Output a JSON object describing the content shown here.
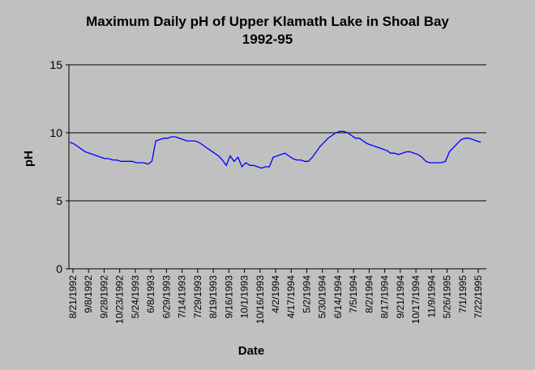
{
  "chart_data": {
    "type": "line",
    "title": "Maximum Daily pH of Upper Klamath Lake in Shoal Bay",
    "subtitle": "1992-95",
    "xlabel": "Date",
    "ylabel": "pH",
    "ylim": [
      0,
      15
    ],
    "yticks": [
      0,
      5,
      10,
      15
    ],
    "grid": "horizontal",
    "colors": {
      "line": "#0000ff",
      "background": "#c0c0c0",
      "plot": "#c0c0c0",
      "axis": "#000000"
    },
    "categories": [
      "8/21/1992",
      "9/8/1992",
      "9/28/1992",
      "10/23/1992",
      "5/24/1993",
      "6/8/1993",
      "6/29/1993",
      "7/14/1993",
      "7/29/1993",
      "8/19/1993",
      "9/16/1993",
      "10/1/1993",
      "10/16/1993",
      "4/2/1994",
      "4/17/1994",
      "5/2/1994",
      "5/30/1994",
      "6/14/1994",
      "7/5/1994",
      "8/2/1994",
      "8/17/1994",
      "9/21/1994",
      "10/17/1994",
      "11/9/1994",
      "5/26/1995",
      "7/1/1995",
      "7/22/1995"
    ],
    "x": [
      0,
      0.25,
      0.5,
      0.75,
      1,
      1.25,
      1.5,
      1.75,
      2,
      2.25,
      2.5,
      2.75,
      3,
      3.25,
      3.5,
      3.75,
      4,
      4.25,
      4.5,
      4.75,
      5,
      5.25,
      5.5,
      5.75,
      6,
      6.25,
      6.5,
      6.75,
      7,
      7.25,
      7.5,
      7.75,
      8,
      8.25,
      8.5,
      8.75,
      9,
      9.25,
      9.5,
      9.75,
      10,
      10.25,
      10.5,
      10.75,
      11,
      11.25,
      11.5,
      11.75,
      12,
      12.25,
      12.5,
      12.75,
      13,
      13.25,
      13.5,
      13.75,
      14,
      14.25,
      14.5,
      14.75,
      15,
      15.25,
      15.5,
      15.75,
      16,
      16.25,
      16.5,
      16.75,
      17,
      17.25,
      17.5,
      17.75,
      18,
      18.25,
      18.5,
      18.75,
      19,
      19.25,
      19.5,
      19.75,
      20,
      20.25,
      20.5,
      20.75,
      21,
      21.25,
      21.5,
      21.75,
      22,
      22.25,
      22.5,
      22.75,
      23,
      23.25,
      23.5,
      23.75,
      24,
      24.25,
      24.5,
      24.75,
      25,
      25.25,
      25.5,
      25.75,
      26,
      26.25
    ],
    "series": [
      {
        "name": "pH",
        "values": [
          9.3,
          9.2,
          9.0,
          8.8,
          8.6,
          8.5,
          8.4,
          8.3,
          8.2,
          8.1,
          8.1,
          8.0,
          8.0,
          7.9,
          7.9,
          7.9,
          7.9,
          7.8,
          7.8,
          7.8,
          7.7,
          7.9,
          9.4,
          9.5,
          9.6,
          9.6,
          9.7,
          9.7,
          9.6,
          9.5,
          9.4,
          9.4,
          9.4,
          9.3,
          9.1,
          8.9,
          8.7,
          8.5,
          8.3,
          8.0,
          7.6,
          8.3,
          7.9,
          8.2,
          7.5,
          7.8,
          7.6,
          7.6,
          7.5,
          7.4,
          7.5,
          7.5,
          8.2,
          8.3,
          8.4,
          8.5,
          8.3,
          8.1,
          8.0,
          8.0,
          7.9,
          7.9,
          8.2,
          8.6,
          9.0,
          9.3,
          9.6,
          9.8,
          10.0,
          10.1,
          10.1,
          10.0,
          9.8,
          9.6,
          9.6,
          9.4,
          9.2,
          9.1,
          9.0,
          8.9,
          8.8,
          8.7,
          8.5,
          8.5,
          8.4,
          8.5,
          8.6,
          8.6,
          8.5,
          8.4,
          8.2,
          7.9,
          7.8,
          7.8,
          7.8,
          7.8,
          7.9,
          8.6,
          8.9,
          9.2,
          9.5,
          9.6,
          9.6,
          9.5,
          9.4,
          9.3
        ]
      }
    ]
  }
}
